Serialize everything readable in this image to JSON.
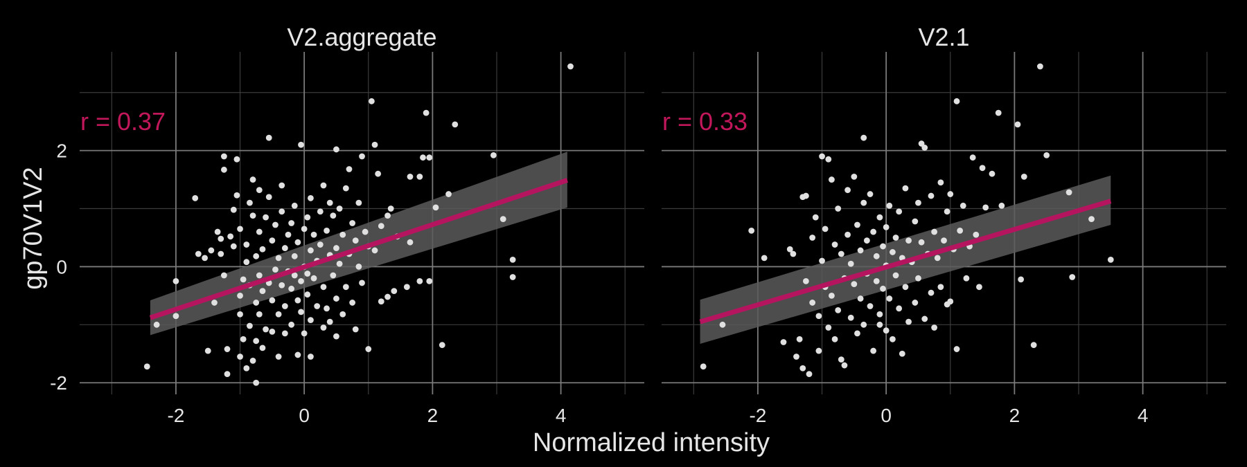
{
  "chart_data": {
    "type": "scatter",
    "xlabel": "Normalized intensity",
    "ylabel": "gp70V1V2",
    "xlim": [
      -3.5,
      5.3
    ],
    "ylim": [
      -2.2,
      3.7
    ],
    "x_ticks": [
      -2,
      0,
      2,
      4
    ],
    "y_ticks": [
      -2,
      0,
      2
    ],
    "grid": true,
    "colors": {
      "background": "#000000",
      "grid_major": "#7a7a7a",
      "grid_minor": "#3c3c3c",
      "points": "#e0e0e0",
      "fit_line": "#b5145f",
      "confidence_band": "#5a5a5a",
      "annotation": "#c2185b",
      "text": "#e6e6e6"
    },
    "panels": [
      {
        "title": "V2.aggregate",
        "annotation": "r = 0.37",
        "fit": {
          "x": [
            -2.4,
            4.1
          ],
          "y": [
            -0.88,
            1.49
          ],
          "band_lower": [
            -1.18,
            1.02
          ],
          "band_upper": [
            -0.58,
            1.98
          ]
        },
        "points": [
          [
            -2.45,
            -1.72
          ],
          [
            -2.3,
            -1.0
          ],
          [
            -2.0,
            -0.85
          ],
          [
            -2.0,
            -0.25
          ],
          [
            -1.7,
            1.18
          ],
          [
            -1.65,
            0.22
          ],
          [
            -1.55,
            0.15
          ],
          [
            -1.5,
            -1.45
          ],
          [
            -1.45,
            0.28
          ],
          [
            -1.4,
            -0.62
          ],
          [
            -1.35,
            0.6
          ],
          [
            -1.3,
            0.48
          ],
          [
            -1.3,
            0.22
          ],
          [
            -1.25,
            1.67
          ],
          [
            -1.25,
            1.9
          ],
          [
            -1.25,
            -0.15
          ],
          [
            -1.2,
            -1.85
          ],
          [
            -1.2,
            -1.42
          ],
          [
            -1.15,
            0.52
          ],
          [
            -1.1,
            0.35
          ],
          [
            -1.1,
            0.98
          ],
          [
            -1.05,
            1.23
          ],
          [
            -1.05,
            1.85
          ],
          [
            -1.0,
            -0.5
          ],
          [
            -1.0,
            -0.82
          ],
          [
            -1.0,
            -1.55
          ],
          [
            -1.0,
            0.65
          ],
          [
            -0.95,
            -0.22
          ],
          [
            -0.95,
            -1.25
          ],
          [
            -0.9,
            -1.75
          ],
          [
            -0.9,
            0.08
          ],
          [
            -0.9,
            0.38
          ],
          [
            -0.85,
            -1.02
          ],
          [
            -0.85,
            -0.32
          ],
          [
            -0.85,
            1.1
          ],
          [
            -0.8,
            1.5
          ],
          [
            -0.8,
            -1.62
          ],
          [
            -0.8,
            0.88
          ],
          [
            -0.75,
            -2.0
          ],
          [
            -0.75,
            -1.28
          ],
          [
            -0.75,
            -0.62
          ],
          [
            -0.75,
            0.18
          ],
          [
            -0.7,
            -0.82
          ],
          [
            -0.7,
            -0.15
          ],
          [
            -0.7,
            0.6
          ],
          [
            -0.7,
            1.32
          ],
          [
            -0.65,
            -1.4
          ],
          [
            -0.65,
            -0.42
          ],
          [
            -0.65,
            0.3
          ],
          [
            -0.6,
            0.85
          ],
          [
            -0.6,
            -1.08
          ],
          [
            -0.55,
            -0.28
          ],
          [
            -0.55,
            2.22
          ],
          [
            -0.55,
            1.2
          ],
          [
            -0.5,
            -0.58
          ],
          [
            -0.5,
            -1.12
          ],
          [
            -0.5,
            0.45
          ],
          [
            -0.45,
            0.72
          ],
          [
            -0.45,
            -0.05
          ],
          [
            -0.4,
            -1.55
          ],
          [
            -0.4,
            0.15
          ],
          [
            -0.4,
            -0.82
          ],
          [
            -0.35,
            -0.32
          ],
          [
            -0.35,
            0.95
          ],
          [
            -0.35,
            1.4
          ],
          [
            -0.3,
            -0.68
          ],
          [
            -0.3,
            -1.15
          ],
          [
            -0.3,
            0.32
          ],
          [
            -0.25,
            0.55
          ],
          [
            -0.25,
            -0.08
          ],
          [
            -0.2,
            -1.0
          ],
          [
            -0.2,
            -0.38
          ],
          [
            -0.2,
            0.75
          ],
          [
            -0.15,
            -0.15
          ],
          [
            -0.15,
            0.18
          ],
          [
            -0.15,
            1.05
          ],
          [
            -0.1,
            -0.58
          ],
          [
            -0.1,
            -1.52
          ],
          [
            -0.1,
            0.42
          ],
          [
            -0.05,
            -0.25
          ],
          [
            -0.05,
            -0.78
          ],
          [
            -0.05,
            2.1
          ],
          [
            0.0,
            0.65
          ],
          [
            0.0,
            -1.15
          ],
          [
            0.0,
            0.0
          ],
          [
            0.05,
            0.85
          ],
          [
            0.05,
            -0.48
          ],
          [
            0.05,
            -0.12
          ],
          [
            0.1,
            0.28
          ],
          [
            0.1,
            1.18
          ],
          [
            0.1,
            -0.92
          ],
          [
            0.1,
            -1.55
          ],
          [
            0.15,
            -0.2
          ],
          [
            0.15,
            0.55
          ],
          [
            0.2,
            0.1
          ],
          [
            0.2,
            -0.68
          ],
          [
            0.25,
            0.38
          ],
          [
            0.25,
            0.95
          ],
          [
            0.3,
            -0.35
          ],
          [
            0.3,
            -1.05
          ],
          [
            0.3,
            1.4
          ],
          [
            0.35,
            -0.72
          ],
          [
            0.35,
            0.62
          ],
          [
            0.4,
            -0.95
          ],
          [
            0.4,
            0.2
          ],
          [
            0.4,
            1.1
          ],
          [
            0.45,
            -0.15
          ],
          [
            0.45,
            0.88
          ],
          [
            0.5,
            -0.55
          ],
          [
            0.5,
            2.02
          ],
          [
            0.5,
            0.32
          ],
          [
            0.5,
            -1.2
          ],
          [
            0.55,
            1.0
          ],
          [
            0.55,
            0.05
          ],
          [
            0.6,
            -0.82
          ],
          [
            0.6,
            0.55
          ],
          [
            0.65,
            1.35
          ],
          [
            0.65,
            -0.35
          ],
          [
            0.7,
            0.22
          ],
          [
            0.7,
            1.68
          ],
          [
            0.75,
            -0.62
          ],
          [
            0.75,
            0.75
          ],
          [
            0.8,
            -1.08
          ],
          [
            0.8,
            0.45
          ],
          [
            0.85,
            1.1
          ],
          [
            0.85,
            0.0
          ],
          [
            0.9,
            -0.28
          ],
          [
            0.9,
            1.9
          ],
          [
            0.95,
            0.6
          ],
          [
            1.0,
            -1.42
          ],
          [
            1.0,
            0.35
          ],
          [
            1.05,
            2.85
          ],
          [
            1.1,
            0.28
          ],
          [
            1.1,
            2.1
          ],
          [
            1.15,
            1.6
          ],
          [
            1.2,
            0.7
          ],
          [
            1.2,
            -0.6
          ],
          [
            1.3,
            0.88
          ],
          [
            1.3,
            -0.52
          ],
          [
            1.35,
            1.0
          ],
          [
            1.4,
            -0.42
          ],
          [
            1.45,
            0.52
          ],
          [
            1.6,
            -0.35
          ],
          [
            1.65,
            0.42
          ],
          [
            1.65,
            1.55
          ],
          [
            1.8,
            -0.25
          ],
          [
            1.8,
            1.55
          ],
          [
            1.85,
            1.88
          ],
          [
            1.9,
            2.65
          ],
          [
            1.95,
            1.88
          ],
          [
            1.95,
            -0.25
          ],
          [
            2.05,
            1.02
          ],
          [
            2.15,
            -1.35
          ],
          [
            2.25,
            1.25
          ],
          [
            2.35,
            2.45
          ],
          [
            2.95,
            1.92
          ],
          [
            3.1,
            0.82
          ],
          [
            3.25,
            0.12
          ],
          [
            3.25,
            -0.18
          ],
          [
            4.15,
            3.45
          ]
        ]
      },
      {
        "title": "V2.1",
        "annotation": "r = 0.33",
        "fit": {
          "x": [
            -2.9,
            3.5
          ],
          "y": [
            -0.95,
            1.13
          ],
          "band_lower": [
            -1.33,
            0.72
          ],
          "band_upper": [
            -0.57,
            1.57
          ]
        },
        "points": [
          [
            -2.85,
            -1.72
          ],
          [
            -2.55,
            -1.0
          ],
          [
            -2.1,
            0.62
          ],
          [
            -1.9,
            0.15
          ],
          [
            -1.6,
            -1.3
          ],
          [
            -1.5,
            0.3
          ],
          [
            -1.45,
            0.22
          ],
          [
            -1.4,
            -1.55
          ],
          [
            -1.35,
            -1.25
          ],
          [
            -1.3,
            -1.75
          ],
          [
            -1.3,
            1.2
          ],
          [
            -1.25,
            -0.25
          ],
          [
            -1.25,
            1.22
          ],
          [
            -1.2,
            -1.85
          ],
          [
            -1.15,
            -0.62
          ],
          [
            -1.15,
            0.5
          ],
          [
            -1.1,
            0.85
          ],
          [
            -1.05,
            -0.85
          ],
          [
            -1.05,
            -1.45
          ],
          [
            -1.0,
            1.9
          ],
          [
            -1.0,
            0.1
          ],
          [
            -0.95,
            -0.35
          ],
          [
            -0.95,
            0.65
          ],
          [
            -0.9,
            1.85
          ],
          [
            -0.9,
            -1.05
          ],
          [
            -0.85,
            1.5
          ],
          [
            -0.85,
            -0.5
          ],
          [
            -0.8,
            -1.25
          ],
          [
            -0.8,
            0.38
          ],
          [
            -0.75,
            -0.75
          ],
          [
            -0.75,
            1.0
          ],
          [
            -0.7,
            -1.6
          ],
          [
            -0.7,
            0.22
          ],
          [
            -0.65,
            -1.7
          ],
          [
            -0.65,
            -0.2
          ],
          [
            -0.6,
            0.55
          ],
          [
            -0.6,
            1.32
          ],
          [
            -0.55,
            -0.88
          ],
          [
            -0.55,
            0.05
          ],
          [
            -0.5,
            1.55
          ],
          [
            -0.5,
            -0.3
          ],
          [
            -0.45,
            -1.15
          ],
          [
            -0.45,
            0.72
          ],
          [
            -0.4,
            -0.55
          ],
          [
            -0.4,
            0.28
          ],
          [
            -0.35,
            1.1
          ],
          [
            -0.35,
            -1.0
          ],
          [
            -0.35,
            2.22
          ],
          [
            -0.3,
            -0.12
          ],
          [
            -0.3,
            0.45
          ],
          [
            -0.25,
            -0.68
          ],
          [
            -0.25,
            1.25
          ],
          [
            -0.2,
            -1.45
          ],
          [
            -0.2,
            0.6
          ],
          [
            -0.15,
            -0.25
          ],
          [
            -0.15,
            0.18
          ],
          [
            -0.1,
            0.85
          ],
          [
            -0.1,
            -0.82
          ],
          [
            -0.1,
            -1.0
          ],
          [
            -0.05,
            0.35
          ],
          [
            -0.05,
            -0.38
          ],
          [
            0.0,
            0.68
          ],
          [
            0.0,
            -1.1
          ],
          [
            0.0,
            0.02
          ],
          [
            0.05,
            1.05
          ],
          [
            0.05,
            -0.55
          ],
          [
            0.1,
            0.25
          ],
          [
            0.1,
            -1.25
          ],
          [
            0.15,
            -0.15
          ],
          [
            0.15,
            0.5
          ],
          [
            0.2,
            -0.72
          ],
          [
            0.2,
            0.95
          ],
          [
            0.25,
            0.15
          ],
          [
            0.25,
            -1.5
          ],
          [
            0.3,
            -0.35
          ],
          [
            0.3,
            1.35
          ],
          [
            0.35,
            0.45
          ],
          [
            0.35,
            -0.95
          ],
          [
            0.4,
            0.08
          ],
          [
            0.45,
            0.78
          ],
          [
            0.45,
            -0.62
          ],
          [
            0.5,
            1.1
          ],
          [
            0.5,
            -0.2
          ],
          [
            0.55,
            2.12
          ],
          [
            0.55,
            0.42
          ],
          [
            0.6,
            -0.9
          ],
          [
            0.6,
            2.05
          ],
          [
            0.65,
            0.22
          ],
          [
            0.7,
            -0.45
          ],
          [
            0.7,
            1.22
          ],
          [
            0.75,
            0.6
          ],
          [
            0.75,
            -1.05
          ],
          [
            0.8,
            0.15
          ],
          [
            0.85,
            -0.35
          ],
          [
            0.85,
            1.45
          ],
          [
            0.9,
            0.45
          ],
          [
            0.95,
            -0.65
          ],
          [
            0.95,
            0.95
          ],
          [
            1.0,
            1.25
          ],
          [
            1.0,
            -0.6
          ],
          [
            1.05,
            0.3
          ],
          [
            1.1,
            -1.42
          ],
          [
            1.1,
            2.85
          ],
          [
            1.15,
            0.62
          ],
          [
            1.2,
            1.05
          ],
          [
            1.25,
            -0.2
          ],
          [
            1.3,
            0.35
          ],
          [
            1.35,
            1.88
          ],
          [
            1.4,
            0.55
          ],
          [
            1.45,
            -0.35
          ],
          [
            1.5,
            1.7
          ],
          [
            1.55,
            1.02
          ],
          [
            1.65,
            1.6
          ],
          [
            1.75,
            2.65
          ],
          [
            1.8,
            1.05
          ],
          [
            2.05,
            2.45
          ],
          [
            2.1,
            -0.22
          ],
          [
            2.15,
            1.55
          ],
          [
            2.3,
            -1.35
          ],
          [
            2.4,
            3.45
          ],
          [
            2.5,
            1.92
          ],
          [
            2.85,
            1.28
          ],
          [
            2.9,
            -0.18
          ],
          [
            3.2,
            0.82
          ],
          [
            3.5,
            0.12
          ]
        ]
      }
    ]
  }
}
